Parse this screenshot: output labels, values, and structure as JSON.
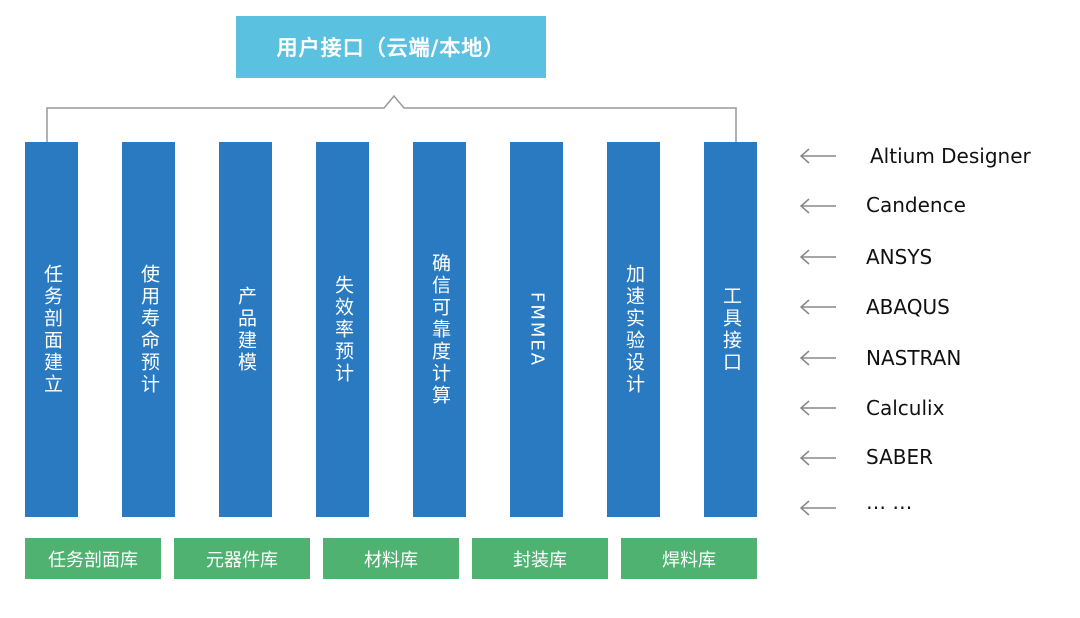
{
  "top_box": {
    "label": "用户接口（云端/本地）"
  },
  "modules": [
    {
      "label": "任务剖面建立"
    },
    {
      "label": "使用寿命预计"
    },
    {
      "label": "产品建模"
    },
    {
      "label": "失效率预计"
    },
    {
      "label": "确信可靠度计算"
    },
    {
      "label": "FMMEA"
    },
    {
      "label": "加速实验设计"
    },
    {
      "label": "工具接口"
    }
  ],
  "libraries": [
    {
      "label": "任务剖面库"
    },
    {
      "label": "元器件库"
    },
    {
      "label": "材料库"
    },
    {
      "label": "封装库"
    },
    {
      "label": "焊料库"
    }
  ],
  "tools": [
    {
      "label": "Altium Designer"
    },
    {
      "label": "Candence"
    },
    {
      "label": "ANSYS"
    },
    {
      "label": "ABAQUS"
    },
    {
      "label": "NASTRAN"
    },
    {
      "label": "Calculix"
    },
    {
      "label": "SABER"
    },
    {
      "label": "… …"
    }
  ],
  "colors": {
    "top_box": "#5bc1e1",
    "module": "#2a7ac1",
    "library": "#4fb271",
    "connector": "#999999"
  },
  "icons": {
    "tool_pointer": "left-arrow-icon"
  }
}
